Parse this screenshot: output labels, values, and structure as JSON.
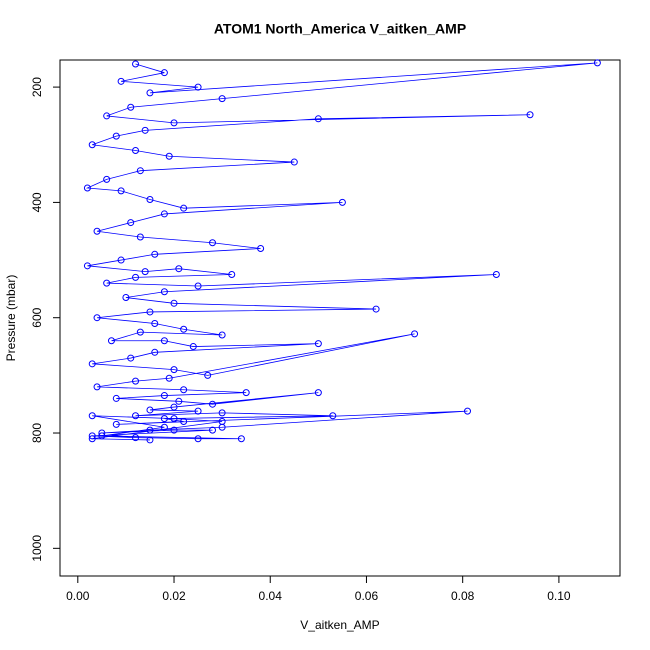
{
  "chart_data": {
    "type": "scatter-line",
    "title": "ATOM1 North_America V_aitken_AMP",
    "x_label": "V_aitken_AMP",
    "y_label": "Pressure (mbar)",
    "color": "#0000ff",
    "xlim": [
      -0.0037,
      0.1127
    ],
    "ylim": [
      1048,
      153
    ],
    "xticks": [
      {
        "value": 0,
        "label": "0.00"
      },
      {
        "value": 0.02,
        "label": "0.02"
      },
      {
        "value": 0.04,
        "label": "0.04"
      },
      {
        "value": 0.06,
        "label": "0.06"
      },
      {
        "value": 0.08,
        "label": "0.08"
      },
      {
        "value": 0.1,
        "label": "0.10"
      }
    ],
    "yticks": [
      200,
      400,
      600,
      800,
      1000
    ],
    "x": [
      0.012,
      0.018,
      0.009,
      0.025,
      0.015,
      0.108,
      0.03,
      0.011,
      0.006,
      0.02,
      0.094,
      0.05,
      0.014,
      0.008,
      0.003,
      0.012,
      0.019,
      0.045,
      0.013,
      0.006,
      0.002,
      0.009,
      0.015,
      0.022,
      0.055,
      0.018,
      0.011,
      0.004,
      0.013,
      0.028,
      0.038,
      0.016,
      0.009,
      0.002,
      0.014,
      0.021,
      0.032,
      0.012,
      0.006,
      0.025,
      0.087,
      0.018,
      0.01,
      0.02,
      0.062,
      0.015,
      0.004,
      0.016,
      0.022,
      0.03,
      0.013,
      0.007,
      0.018,
      0.024,
      0.05,
      0.016,
      0.011,
      0.003,
      0.02,
      0.027,
      0.07,
      0.019,
      0.012,
      0.004,
      0.022,
      0.035,
      0.018,
      0.008,
      0.021,
      0.028,
      0.05,
      0.02,
      0.015,
      0.025,
      0.012,
      0.03,
      0.053,
      0.018,
      0.022,
      0.008,
      0.081,
      0.03,
      0.015,
      0.005,
      0.02,
      0.028,
      0.003,
      0.012,
      0.025,
      0.034,
      0.005,
      0.018,
      0.003,
      0.02,
      0.03,
      0.003,
      0.015
    ],
    "y": [
      160,
      175,
      190,
      200,
      210,
      158,
      220,
      235,
      250,
      262,
      248,
      255,
      275,
      285,
      300,
      310,
      320,
      330,
      345,
      360,
      375,
      380,
      395,
      410,
      400,
      420,
      435,
      450,
      460,
      470,
      480,
      490,
      500,
      510,
      520,
      515,
      525,
      530,
      540,
      545,
      525,
      555,
      565,
      575,
      585,
      590,
      600,
      610,
      620,
      630,
      625,
      640,
      640,
      650,
      645,
      660,
      670,
      680,
      690,
      700,
      628,
      705,
      710,
      720,
      725,
      730,
      735,
      740,
      745,
      750,
      730,
      755,
      760,
      762,
      770,
      765,
      770,
      775,
      780,
      785,
      762,
      790,
      795,
      800,
      795,
      795,
      805,
      808,
      810,
      810,
      805,
      790,
      770,
      775,
      780,
      810,
      812
    ]
  }
}
